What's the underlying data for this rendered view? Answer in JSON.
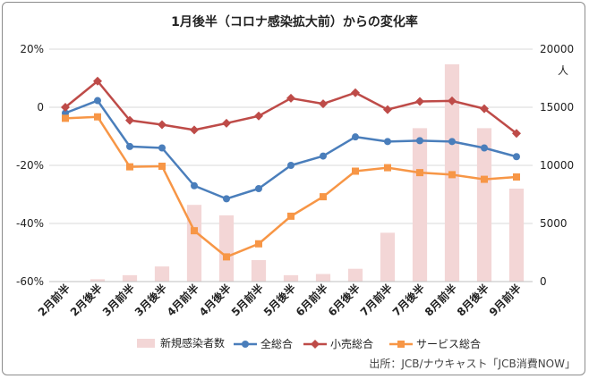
{
  "chart_data": {
    "type": "bar+line",
    "title": "1月後半（コロナ感染拡大前）からの変化率",
    "categories": [
      "2月前半",
      "2月後半",
      "3月前半",
      "3月後半",
      "4月前半",
      "4月後半",
      "5月前半",
      "5月後半",
      "6月前半",
      "6月後半",
      "7月前半",
      "7月後半",
      "8月前半",
      "8月後半",
      "9月前半"
    ],
    "y_left": {
      "ticks": [
        "20%",
        "0",
        "-20%",
        "-40%",
        "-60%"
      ],
      "range": [
        -60,
        20
      ]
    },
    "y_right": {
      "ticks": [
        "20000",
        "15000",
        "10000",
        "5000",
        "0"
      ],
      "range": [
        0,
        20000
      ],
      "unit": "人"
    },
    "bars": {
      "name": "新規感染者数",
      "color": "#f3d6d6",
      "axis": "right",
      "values": [
        0,
        200,
        550,
        1300,
        6600,
        5700,
        1850,
        550,
        650,
        1100,
        4200,
        13200,
        18700,
        13200,
        8000
      ]
    },
    "series": [
      {
        "name": "全総合",
        "color": "#4a7ebb",
        "marker": "circle",
        "values": [
          -2,
          2.3,
          -13.5,
          -14,
          -27,
          -31.5,
          -28,
          -20,
          -16.8,
          -10.2,
          -11.8,
          -11.5,
          -11.8,
          -14,
          -17
        ]
      },
      {
        "name": "小売総合",
        "color": "#be4b48",
        "marker": "diamond",
        "values": [
          0,
          9,
          -4.5,
          -6,
          -7.8,
          -5.5,
          -3,
          3.1,
          1.2,
          5,
          -0.8,
          2,
          2.2,
          -0.5,
          -9
        ]
      },
      {
        "name": "サービス総合",
        "color": "#f79646",
        "marker": "square",
        "values": [
          -3.8,
          -3.3,
          -20.5,
          -20.3,
          -42.5,
          -51.5,
          -47,
          -37.5,
          -30.8,
          -22,
          -20.8,
          -22.5,
          -23.2,
          -24.8,
          -24
        ]
      }
    ],
    "legend_position": "bottom",
    "source": "出所：JCB/ナウキャスト「JCB消費NOW」"
  }
}
